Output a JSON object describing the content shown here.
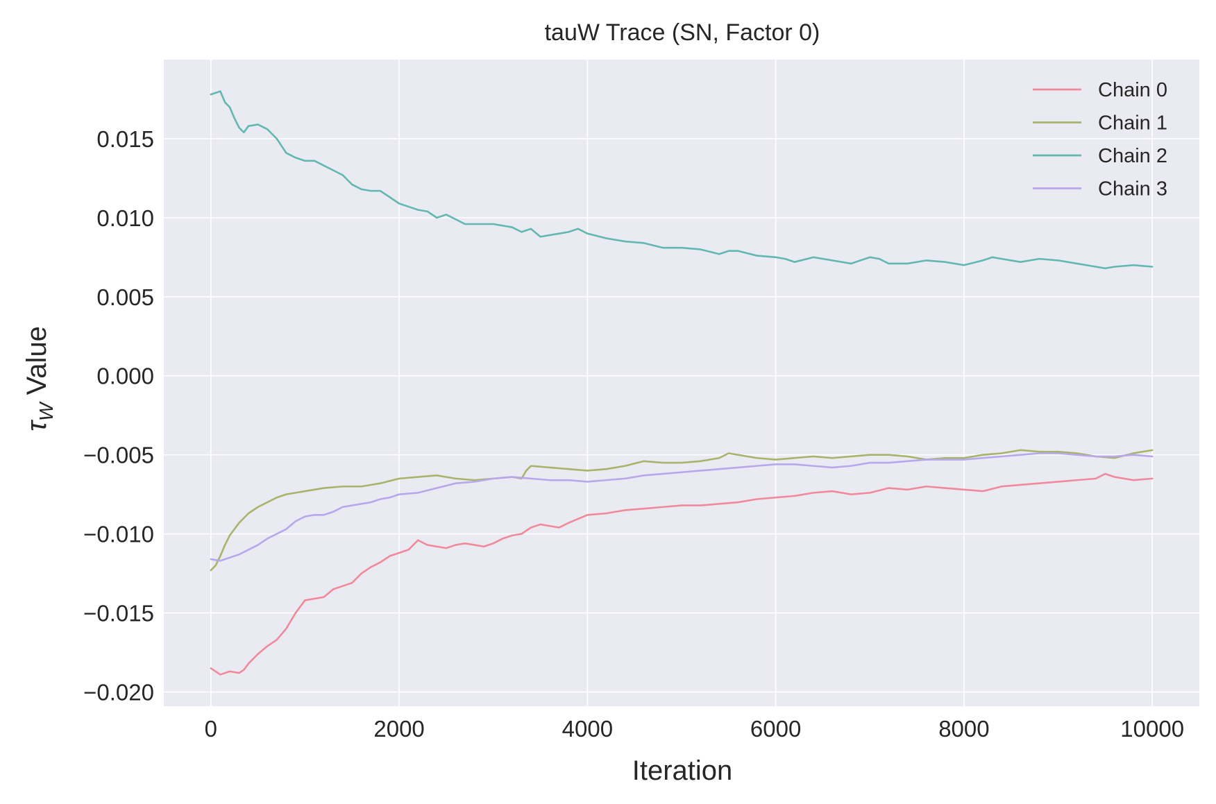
{
  "chart_data": {
    "type": "line",
    "title": "tauW Trace (SN, Factor 0)",
    "xlabel": "Iteration",
    "ylabel_symbol": "τ",
    "ylabel_subscript": "W",
    "ylabel_suffix": " Value",
    "xlim": [
      -500,
      10500
    ],
    "ylim": [
      -0.0209,
      0.02
    ],
    "x_ticks": [
      0,
      2000,
      4000,
      6000,
      8000,
      10000
    ],
    "x_tick_labels": [
      "0",
      "2000",
      "4000",
      "6000",
      "8000",
      "10000"
    ],
    "y_ticks": [
      -0.02,
      -0.015,
      -0.01,
      -0.005,
      0.0,
      0.005,
      0.01,
      0.015
    ],
    "y_tick_labels": [
      "−0.020",
      "−0.015",
      "−0.010",
      "−0.005",
      "0.000",
      "0.005",
      "0.010",
      "0.015"
    ],
    "grid": true,
    "legend_position": "top-right",
    "background_color": "#eaeaf2",
    "series": [
      {
        "name": "Chain 0",
        "color": "#f08a9a",
        "x": [
          0,
          100,
          200,
          300,
          350,
          400,
          500,
          600,
          700,
          800,
          900,
          1000,
          1200,
          1300,
          1400,
          1500,
          1600,
          1700,
          1800,
          1900,
          2000,
          2100,
          2200,
          2300,
          2400,
          2500,
          2600,
          2700,
          2800,
          2900,
          3000,
          3100,
          3200,
          3300,
          3400,
          3500,
          3600,
          3700,
          3800,
          4000,
          4200,
          4400,
          4600,
          4800,
          5000,
          5200,
          5400,
          5600,
          5800,
          6000,
          6200,
          6400,
          6600,
          6800,
          7000,
          7200,
          7400,
          7600,
          7800,
          8000,
          8200,
          8400,
          8600,
          8800,
          9000,
          9200,
          9400,
          9500,
          9600,
          9800,
          10000
        ],
        "y": [
          -0.0185,
          -0.0189,
          -0.0187,
          -0.0188,
          -0.0186,
          -0.0182,
          -0.0176,
          -0.0171,
          -0.0167,
          -0.016,
          -0.015,
          -0.0142,
          -0.014,
          -0.0135,
          -0.0133,
          -0.0131,
          -0.0125,
          -0.0121,
          -0.0118,
          -0.0114,
          -0.0112,
          -0.011,
          -0.0104,
          -0.0107,
          -0.0108,
          -0.0109,
          -0.0107,
          -0.0106,
          -0.0107,
          -0.0108,
          -0.0106,
          -0.0103,
          -0.0101,
          -0.01,
          -0.0096,
          -0.0094,
          -0.0095,
          -0.0096,
          -0.0093,
          -0.0088,
          -0.0087,
          -0.0085,
          -0.0084,
          -0.0083,
          -0.0082,
          -0.0082,
          -0.0081,
          -0.008,
          -0.0078,
          -0.0077,
          -0.0076,
          -0.0074,
          -0.0073,
          -0.0075,
          -0.0074,
          -0.0071,
          -0.0072,
          -0.007,
          -0.0071,
          -0.0072,
          -0.0073,
          -0.007,
          -0.0069,
          -0.0068,
          -0.0067,
          -0.0066,
          -0.0065,
          -0.0062,
          -0.0064,
          -0.0066,
          -0.0065
        ]
      },
      {
        "name": "Chain 1",
        "color": "#a8b46a",
        "x": [
          0,
          50,
          100,
          150,
          200,
          300,
          400,
          500,
          600,
          700,
          800,
          900,
          1000,
          1200,
          1400,
          1600,
          1800,
          2000,
          2200,
          2400,
          2600,
          2800,
          3000,
          3200,
          3300,
          3350,
          3400,
          3600,
          3800,
          4000,
          4200,
          4400,
          4600,
          4800,
          5000,
          5200,
          5400,
          5500,
          5600,
          5800,
          6000,
          6200,
          6400,
          6600,
          6800,
          7000,
          7200,
          7400,
          7600,
          7800,
          8000,
          8200,
          8400,
          8600,
          8800,
          9000,
          9200,
          9400,
          9600,
          9800,
          10000
        ],
        "y": [
          -0.0123,
          -0.012,
          -0.0114,
          -0.0107,
          -0.0101,
          -0.0093,
          -0.0087,
          -0.0083,
          -0.008,
          -0.0077,
          -0.0075,
          -0.0074,
          -0.0073,
          -0.0071,
          -0.007,
          -0.007,
          -0.0068,
          -0.0065,
          -0.0064,
          -0.0063,
          -0.0065,
          -0.0066,
          -0.0065,
          -0.0064,
          -0.0065,
          -0.006,
          -0.0057,
          -0.0058,
          -0.0059,
          -0.006,
          -0.0059,
          -0.0057,
          -0.0054,
          -0.0055,
          -0.0055,
          -0.0054,
          -0.0052,
          -0.0049,
          -0.005,
          -0.0052,
          -0.0053,
          -0.0052,
          -0.0051,
          -0.0052,
          -0.0051,
          -0.005,
          -0.005,
          -0.0051,
          -0.0053,
          -0.0052,
          -0.0052,
          -0.005,
          -0.0049,
          -0.0047,
          -0.0048,
          -0.0048,
          -0.0049,
          -0.0051,
          -0.0052,
          -0.0049,
          -0.0047
        ]
      },
      {
        "name": "Chain 2",
        "color": "#62b8b0",
        "x": [
          0,
          50,
          100,
          150,
          200,
          250,
          300,
          350,
          400,
          500,
          600,
          700,
          800,
          900,
          1000,
          1100,
          1200,
          1300,
          1400,
          1500,
          1600,
          1700,
          1800,
          1900,
          2000,
          2100,
          2200,
          2300,
          2400,
          2500,
          2600,
          2700,
          2800,
          3000,
          3200,
          3300,
          3400,
          3500,
          3600,
          3700,
          3800,
          3900,
          4000,
          4200,
          4400,
          4600,
          4800,
          5000,
          5200,
          5400,
          5500,
          5600,
          5800,
          6000,
          6100,
          6200,
          6400,
          6600,
          6800,
          6900,
          7000,
          7100,
          7200,
          7400,
          7600,
          7800,
          8000,
          8200,
          8300,
          8400,
          8600,
          8800,
          9000,
          9200,
          9400,
          9500,
          9600,
          9800,
          10000
        ],
        "y": [
          0.0178,
          0.0179,
          0.018,
          0.0173,
          0.017,
          0.0163,
          0.0157,
          0.0154,
          0.0158,
          0.0159,
          0.0156,
          0.015,
          0.0141,
          0.0138,
          0.0136,
          0.0136,
          0.0133,
          0.013,
          0.0127,
          0.0121,
          0.0118,
          0.0117,
          0.0117,
          0.0113,
          0.0109,
          0.0107,
          0.0105,
          0.0104,
          0.01,
          0.0102,
          0.0099,
          0.0096,
          0.0096,
          0.0096,
          0.0094,
          0.0091,
          0.0093,
          0.0088,
          0.0089,
          0.009,
          0.0091,
          0.0093,
          0.009,
          0.0087,
          0.0085,
          0.0084,
          0.0081,
          0.0081,
          0.008,
          0.0077,
          0.0079,
          0.0079,
          0.0076,
          0.0075,
          0.0074,
          0.0072,
          0.0075,
          0.0073,
          0.0071,
          0.0073,
          0.0075,
          0.0074,
          0.0071,
          0.0071,
          0.0073,
          0.0072,
          0.007,
          0.0073,
          0.0075,
          0.0074,
          0.0072,
          0.0074,
          0.0073,
          0.0071,
          0.0069,
          0.0068,
          0.0069,
          0.007,
          0.0069
        ]
      },
      {
        "name": "Chain 3",
        "color": "#b6a8ea",
        "x": [
          0,
          100,
          200,
          300,
          400,
          500,
          600,
          700,
          800,
          900,
          1000,
          1100,
          1200,
          1300,
          1400,
          1500,
          1600,
          1700,
          1800,
          1900,
          2000,
          2200,
          2400,
          2600,
          2800,
          3000,
          3200,
          3400,
          3600,
          3800,
          4000,
          4200,
          4400,
          4600,
          4800,
          5000,
          5200,
          5400,
          5600,
          5800,
          6000,
          6200,
          6400,
          6600,
          6800,
          7000,
          7200,
          7400,
          7600,
          7800,
          8000,
          8200,
          8400,
          8600,
          8800,
          9000,
          9200,
          9400,
          9600,
          9800,
          10000
        ],
        "y": [
          -0.0116,
          -0.0117,
          -0.0115,
          -0.0113,
          -0.011,
          -0.0107,
          -0.0103,
          -0.01,
          -0.0097,
          -0.0092,
          -0.0089,
          -0.0088,
          -0.0088,
          -0.0086,
          -0.0083,
          -0.0082,
          -0.0081,
          -0.008,
          -0.0078,
          -0.0077,
          -0.0075,
          -0.0074,
          -0.0071,
          -0.0068,
          -0.0067,
          -0.0065,
          -0.0064,
          -0.0065,
          -0.0066,
          -0.0066,
          -0.0067,
          -0.0066,
          -0.0065,
          -0.0063,
          -0.0062,
          -0.0061,
          -0.006,
          -0.0059,
          -0.0058,
          -0.0057,
          -0.0056,
          -0.0056,
          -0.0057,
          -0.0058,
          -0.0057,
          -0.0055,
          -0.0055,
          -0.0054,
          -0.0053,
          -0.0053,
          -0.0053,
          -0.0052,
          -0.0051,
          -0.005,
          -0.0049,
          -0.0049,
          -0.005,
          -0.0051,
          -0.0051,
          -0.005,
          -0.0051
        ]
      }
    ]
  }
}
